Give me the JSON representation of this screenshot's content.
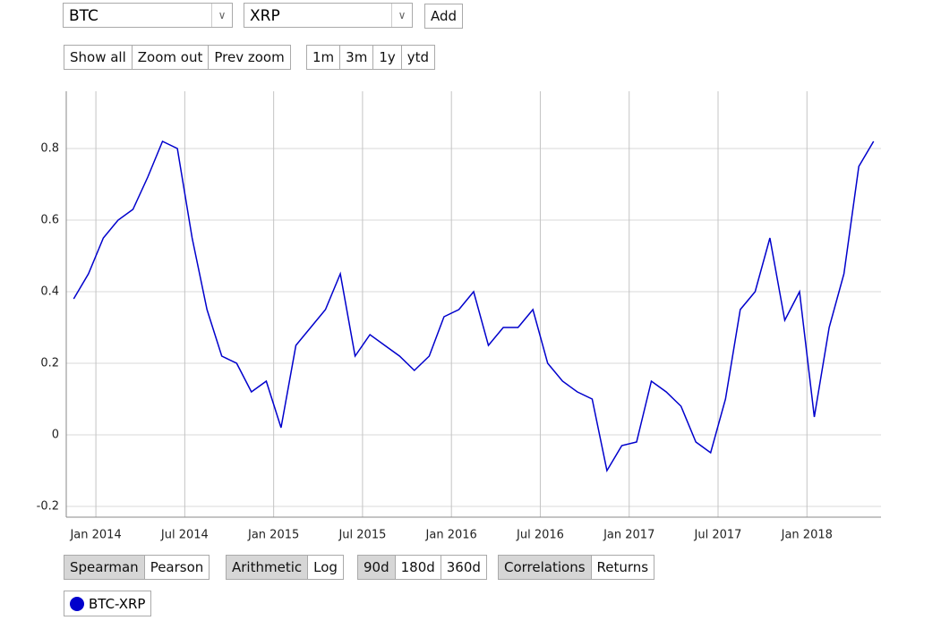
{
  "controls": {
    "asset_a": "BTC",
    "asset_b": "XRP",
    "add": "Add",
    "zoom": [
      "Show all",
      "Zoom out",
      "Prev zoom"
    ],
    "ranges": [
      "1m",
      "3m",
      "1y",
      "ytd"
    ],
    "method": [
      "Spearman",
      "Pearson"
    ],
    "scale": [
      "Arithmetic",
      "Log"
    ],
    "window": [
      "90d",
      "180d",
      "360d"
    ],
    "view": [
      "Correlations",
      "Returns"
    ]
  },
  "chart_data": {
    "type": "line",
    "x": [
      "2013-11",
      "2013-12",
      "2014-01",
      "2014-02",
      "2014-03",
      "2014-04",
      "2014-05",
      "2014-06",
      "2014-07",
      "2014-08",
      "2014-09",
      "2014-10",
      "2014-11",
      "2014-12",
      "2015-01",
      "2015-02",
      "2015-03",
      "2015-04",
      "2015-05",
      "2015-06",
      "2015-07",
      "2015-08",
      "2015-09",
      "2015-10",
      "2015-11",
      "2015-12",
      "2016-01",
      "2016-02",
      "2016-03",
      "2016-04",
      "2016-05",
      "2016-06",
      "2016-07",
      "2016-08",
      "2016-09",
      "2016-10",
      "2016-11",
      "2016-12",
      "2017-01",
      "2017-02",
      "2017-03",
      "2017-04",
      "2017-05",
      "2017-06",
      "2017-07",
      "2017-08",
      "2017-09",
      "2017-10",
      "2017-11",
      "2017-12",
      "2018-01",
      "2018-02",
      "2018-03",
      "2018-04",
      "2018-05"
    ],
    "series": [
      {
        "name": "BTC-XRP",
        "color": "#0000cc",
        "values": [
          0.38,
          0.45,
          0.55,
          0.6,
          0.63,
          0.72,
          0.82,
          0.8,
          0.55,
          0.35,
          0.22,
          0.2,
          0.12,
          0.15,
          0.02,
          0.25,
          0.3,
          0.35,
          0.45,
          0.22,
          0.28,
          0.25,
          0.22,
          0.18,
          0.22,
          0.33,
          0.35,
          0.4,
          0.25,
          0.3,
          0.3,
          0.35,
          0.2,
          0.15,
          0.12,
          0.1,
          -0.1,
          -0.03,
          -0.02,
          0.15,
          0.12,
          0.08,
          -0.02,
          -0.05,
          0.1,
          0.35,
          0.4,
          0.55,
          0.32,
          0.4,
          0.05,
          0.3,
          0.45,
          0.75,
          0.82
        ]
      }
    ],
    "xlim": [
      "2013-11",
      "2018-06"
    ],
    "xticks": [
      {
        "value": "2014-01",
        "label": "Jan 2014"
      },
      {
        "value": "2014-07",
        "label": "Jul 2014"
      },
      {
        "value": "2015-01",
        "label": "Jan 2015"
      },
      {
        "value": "2015-07",
        "label": "Jul 2015"
      },
      {
        "value": "2016-01",
        "label": "Jan 2016"
      },
      {
        "value": "2016-07",
        "label": "Jul 2016"
      },
      {
        "value": "2017-01",
        "label": "Jan 2017"
      },
      {
        "value": "2017-07",
        "label": "Jul 2017"
      },
      {
        "value": "2018-01",
        "label": "Jan 2018"
      }
    ],
    "ylim": [
      -0.23,
      0.96
    ],
    "yticks": [
      -0.2,
      0,
      0.2,
      0.4,
      0.6,
      0.8
    ],
    "grid": true
  }
}
